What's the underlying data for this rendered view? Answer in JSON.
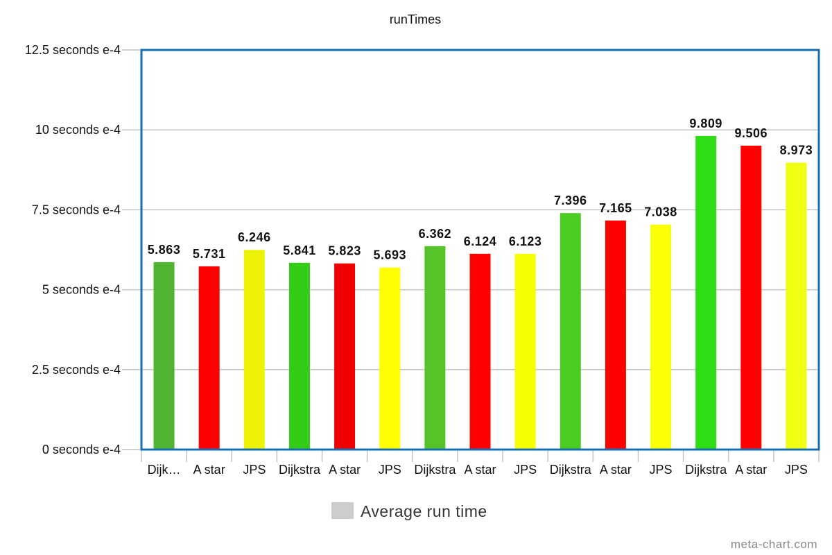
{
  "chart_data": {
    "type": "bar",
    "title": "runTimes",
    "categories": [
      "Dijk…",
      "A star",
      "JPS",
      "Dijkstra",
      "A star",
      "JPS",
      "Dijkstra",
      "A star",
      "JPS",
      "Dijkstra",
      "A star",
      "JPS",
      "Dijkstra",
      "A star",
      "JPS"
    ],
    "series": [
      {
        "name": "Average run time",
        "values": [
          5.863,
          5.731,
          6.246,
          5.841,
          5.823,
          5.693,
          6.362,
          6.124,
          6.123,
          7.396,
          7.165,
          7.038,
          9.809,
          9.506,
          8.973
        ],
        "value_labels": [
          "5.863",
          "5.731",
          "6.246",
          "5.841",
          "5.823",
          "5.693",
          "6.362",
          "6.124",
          "6.123",
          "7.396",
          "7.165",
          "7.038",
          "9.809",
          "9.506",
          "8.973"
        ]
      }
    ],
    "bar_colors": [
      "#4fb334",
      "#ff0000",
      "#eef206",
      "#33cc17",
      "#ee0000",
      "#ffff00",
      "#55c228",
      "#ff0000",
      "#f6ff00",
      "#4ccc22",
      "#ff0000",
      "#f8ff06",
      "#2edd16",
      "#ff0000",
      "#efff14"
    ],
    "ylim": [
      0,
      12.5
    ],
    "yticks": [
      0,
      2.5,
      5,
      7.5,
      10,
      12.5
    ],
    "ytick_labels": [
      "0 seconds e-4",
      "2.5 seconds e-4",
      "5 seconds e-4",
      "7.5 seconds e-4",
      "10 seconds e-4",
      "12.5 seconds e-4"
    ],
    "xlabel": "",
    "ylabel": "",
    "grid": true,
    "legend": {
      "position": "bottom",
      "entries": [
        "Average run time"
      ],
      "swatch_color": "#cccccc"
    },
    "frame_color": "#1a6fb3"
  },
  "watermark": "meta-chart.com"
}
